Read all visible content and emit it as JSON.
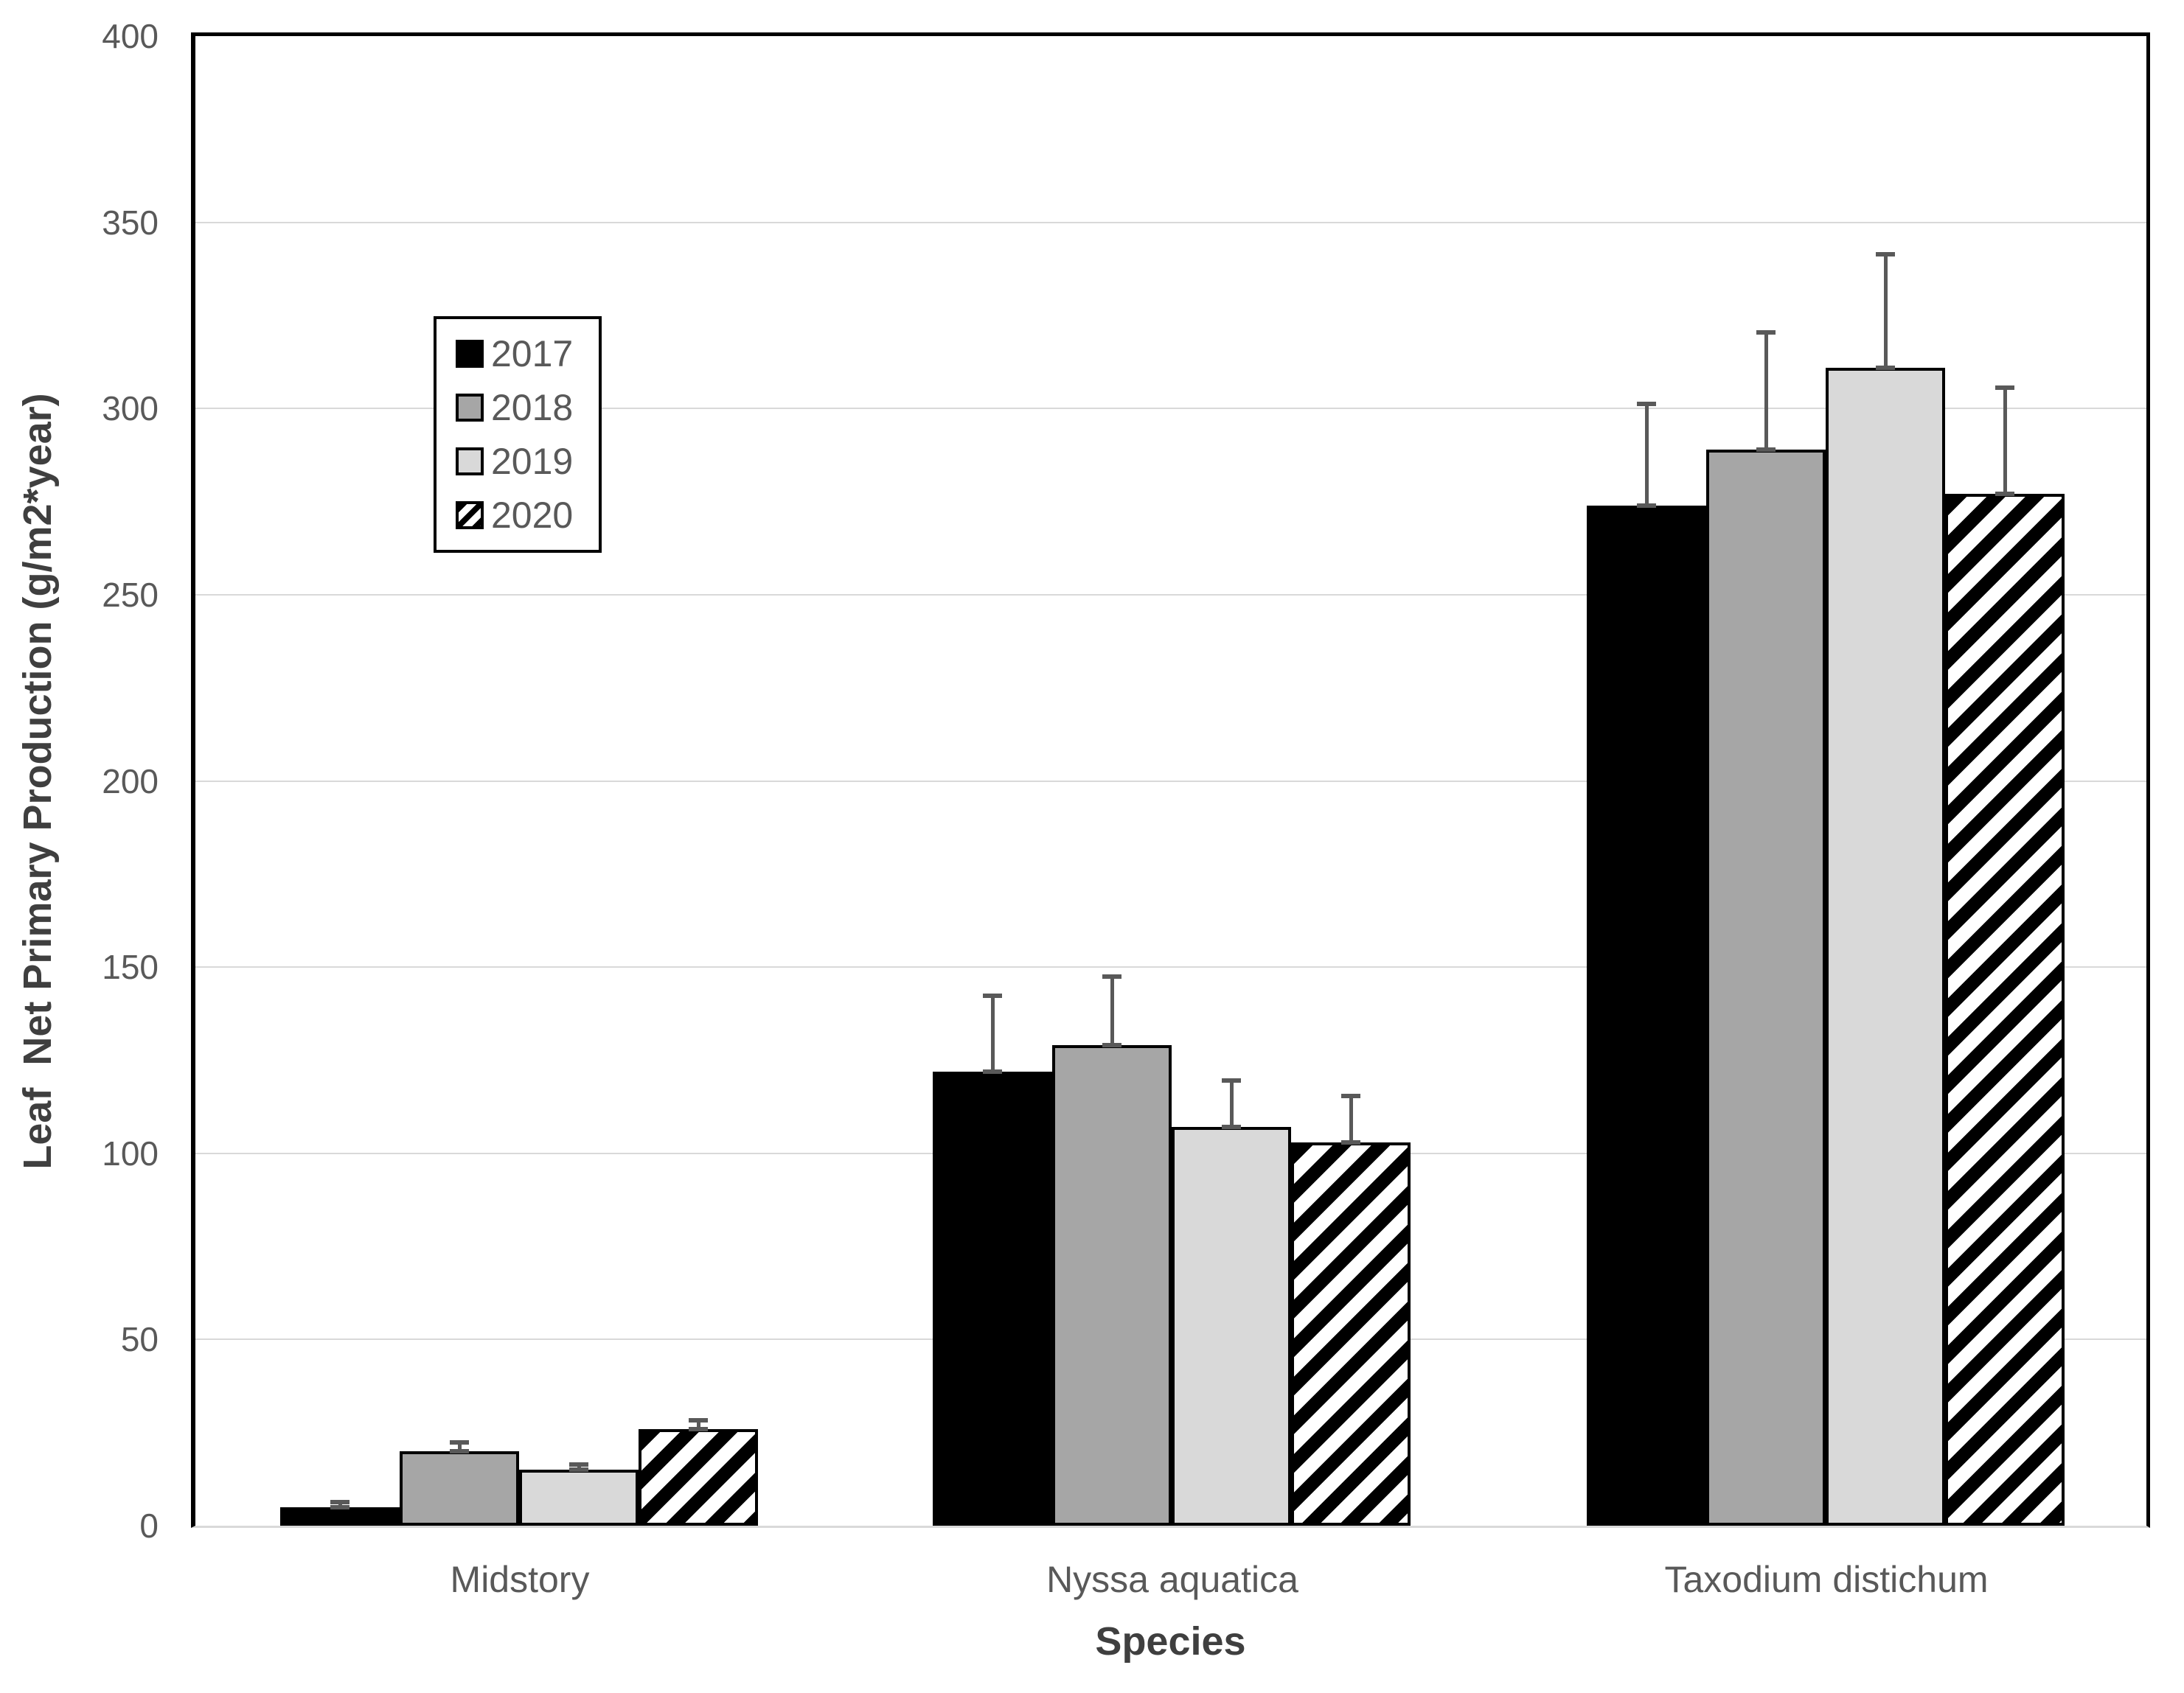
{
  "chart_data": {
    "type": "bar",
    "title": "",
    "xlabel": "Species",
    "ylabel": "Leaf  Net Primary Production (g/m2*year)",
    "ylim": [
      0,
      400
    ],
    "yticks": [
      0,
      50,
      100,
      150,
      200,
      250,
      300,
      350,
      400
    ],
    "grid": "horizontal",
    "legend_position": "inside-upper-left",
    "categories": [
      "Midstory",
      "Nyssa aquatica",
      "Taxodium distichum"
    ],
    "series": [
      {
        "name": "2017",
        "style": "solid-black",
        "color": "#000000",
        "values": [
          5,
          122,
          274
        ],
        "errors": [
          2,
          21,
          28
        ]
      },
      {
        "name": "2018",
        "style": "solid-gray",
        "color": "#A6A6A6",
        "values": [
          20,
          129,
          289
        ],
        "errors": [
          3,
          19,
          32
        ]
      },
      {
        "name": "2019",
        "style": "solid-lightgray",
        "color": "#D9D9D9",
        "values": [
          15,
          107,
          311
        ],
        "errors": [
          2,
          13,
          31
        ]
      },
      {
        "name": "2020",
        "style": "hatch-diagonal",
        "color": "#FFFFFF",
        "values": [
          26,
          103,
          277
        ],
        "errors": [
          3,
          13,
          29
        ]
      }
    ],
    "colors": {
      "axis": "#000000",
      "gridline": "#D9D9D9",
      "tick_text": "#595959",
      "title_text": "#3F3F3F",
      "error_bar": "#595959"
    }
  }
}
